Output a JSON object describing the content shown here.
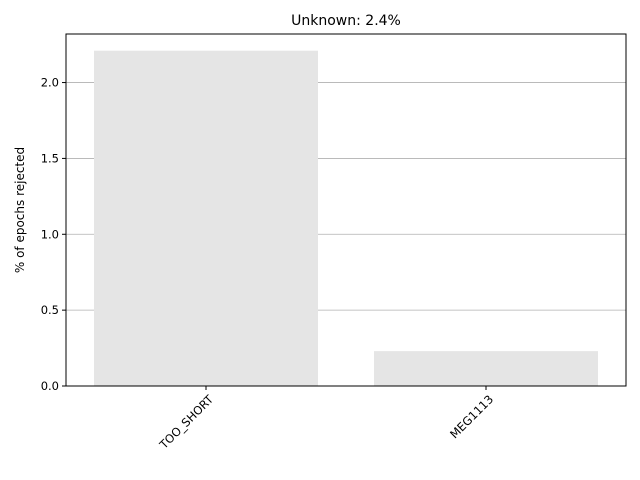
{
  "chart_data": {
    "type": "bar",
    "title": "Unknown: 2.4%",
    "xlabel": "",
    "ylabel": "% of epochs rejected",
    "categories": [
      "TOO_SHORT",
      "MEG1113"
    ],
    "values": [
      2.21,
      0.23
    ],
    "ylim": [
      0,
      2.32
    ],
    "yticks": [
      0.0,
      0.5,
      1.0,
      1.5,
      2.0
    ],
    "ytick_labels": [
      "0.0",
      "0.5",
      "1.0",
      "1.5",
      "2.0"
    ],
    "grid": "y",
    "legend": "none",
    "bar_color": "#e5e5e5",
    "grid_color": "#b0b0b0"
  }
}
